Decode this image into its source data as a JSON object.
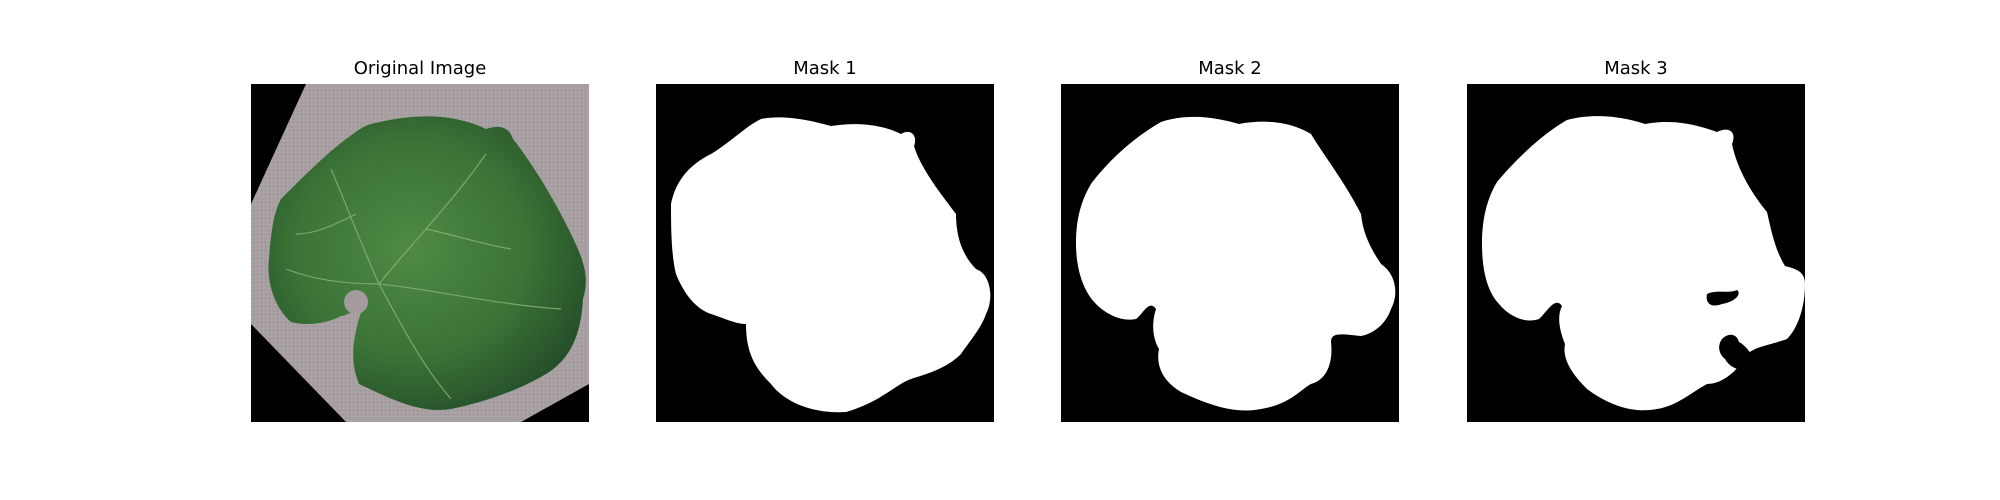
{
  "figure": {
    "panels": [
      {
        "title": "Original Image"
      },
      {
        "title": "Mask 1"
      },
      {
        "title": "Mask 2"
      },
      {
        "title": "Mask 3"
      }
    ]
  },
  "colors": {
    "background": "#ffffff",
    "mask_background": "#000000",
    "mask_foreground": "#ffffff",
    "leaf_green": "#3f7a3a",
    "leaf_dark": "#2b5a2a",
    "paper_gray": "#a59c9e"
  }
}
